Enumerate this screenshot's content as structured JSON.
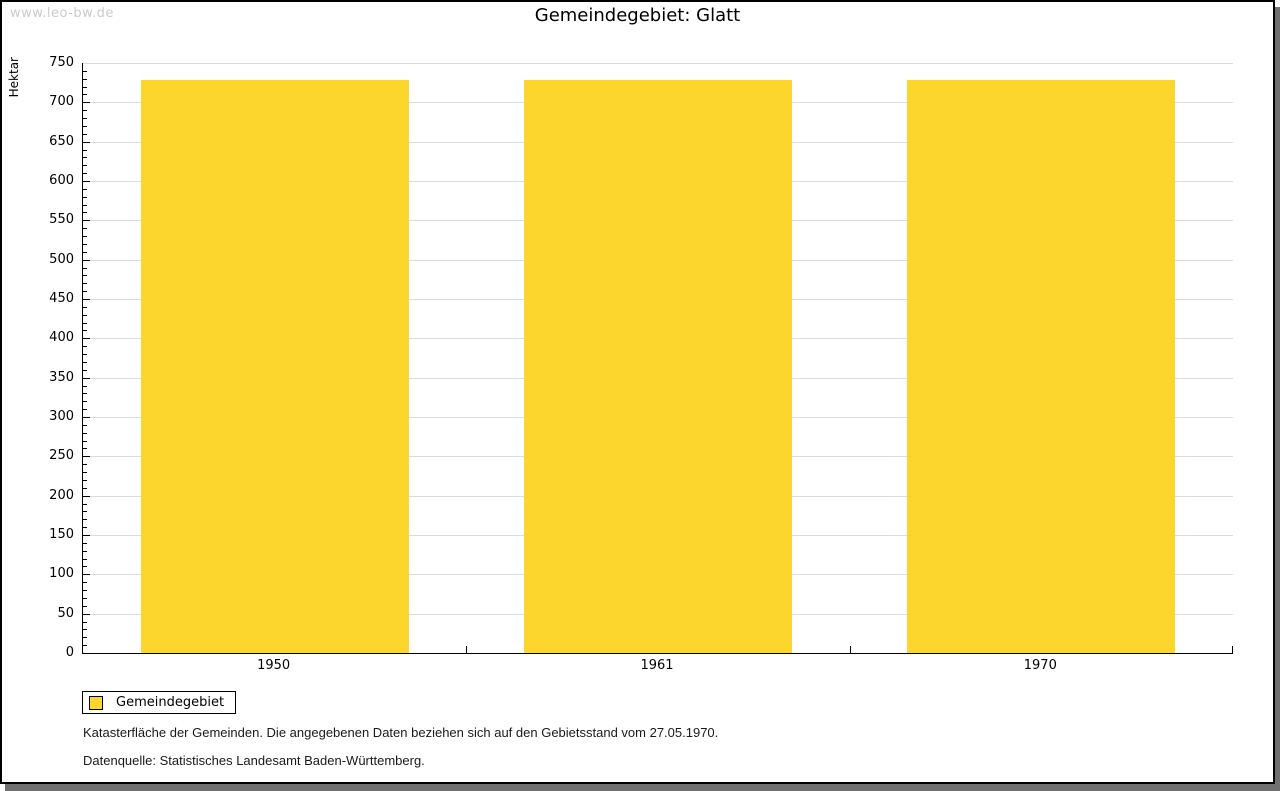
{
  "watermark": "www.leo-bw.de",
  "chart_data": {
    "type": "bar",
    "title": "Gemeindegebiet: Glatt",
    "categories": [
      "1950",
      "1961",
      "1970"
    ],
    "series": [
      {
        "name": "Gemeindegebiet",
        "values": [
          728,
          728,
          728
        ]
      }
    ],
    "xlabel": "",
    "ylabel": "Hektar",
    "ylim": [
      0,
      750
    ],
    "ytick_step": 50,
    "minor_tick_step": 10,
    "grid": true,
    "legend_position": "bottom-left"
  },
  "legend": {
    "items": [
      {
        "label": "Gemeindegebiet",
        "color": "#FCD52D"
      }
    ]
  },
  "footer": {
    "line1": "Katasterfläche der Gemeinden. Die angegebenen Daten beziehen sich auf den Gebietsstand vom 27.05.1970.",
    "line2": "Datenquelle: Statistisches Landesamt Baden-Württemberg."
  },
  "colors": {
    "bar": "#FCD52D",
    "grid": "#dcdcdc",
    "axis": "#000000",
    "watermark": "#cbcbcb",
    "frame_shadow": "#707070"
  }
}
